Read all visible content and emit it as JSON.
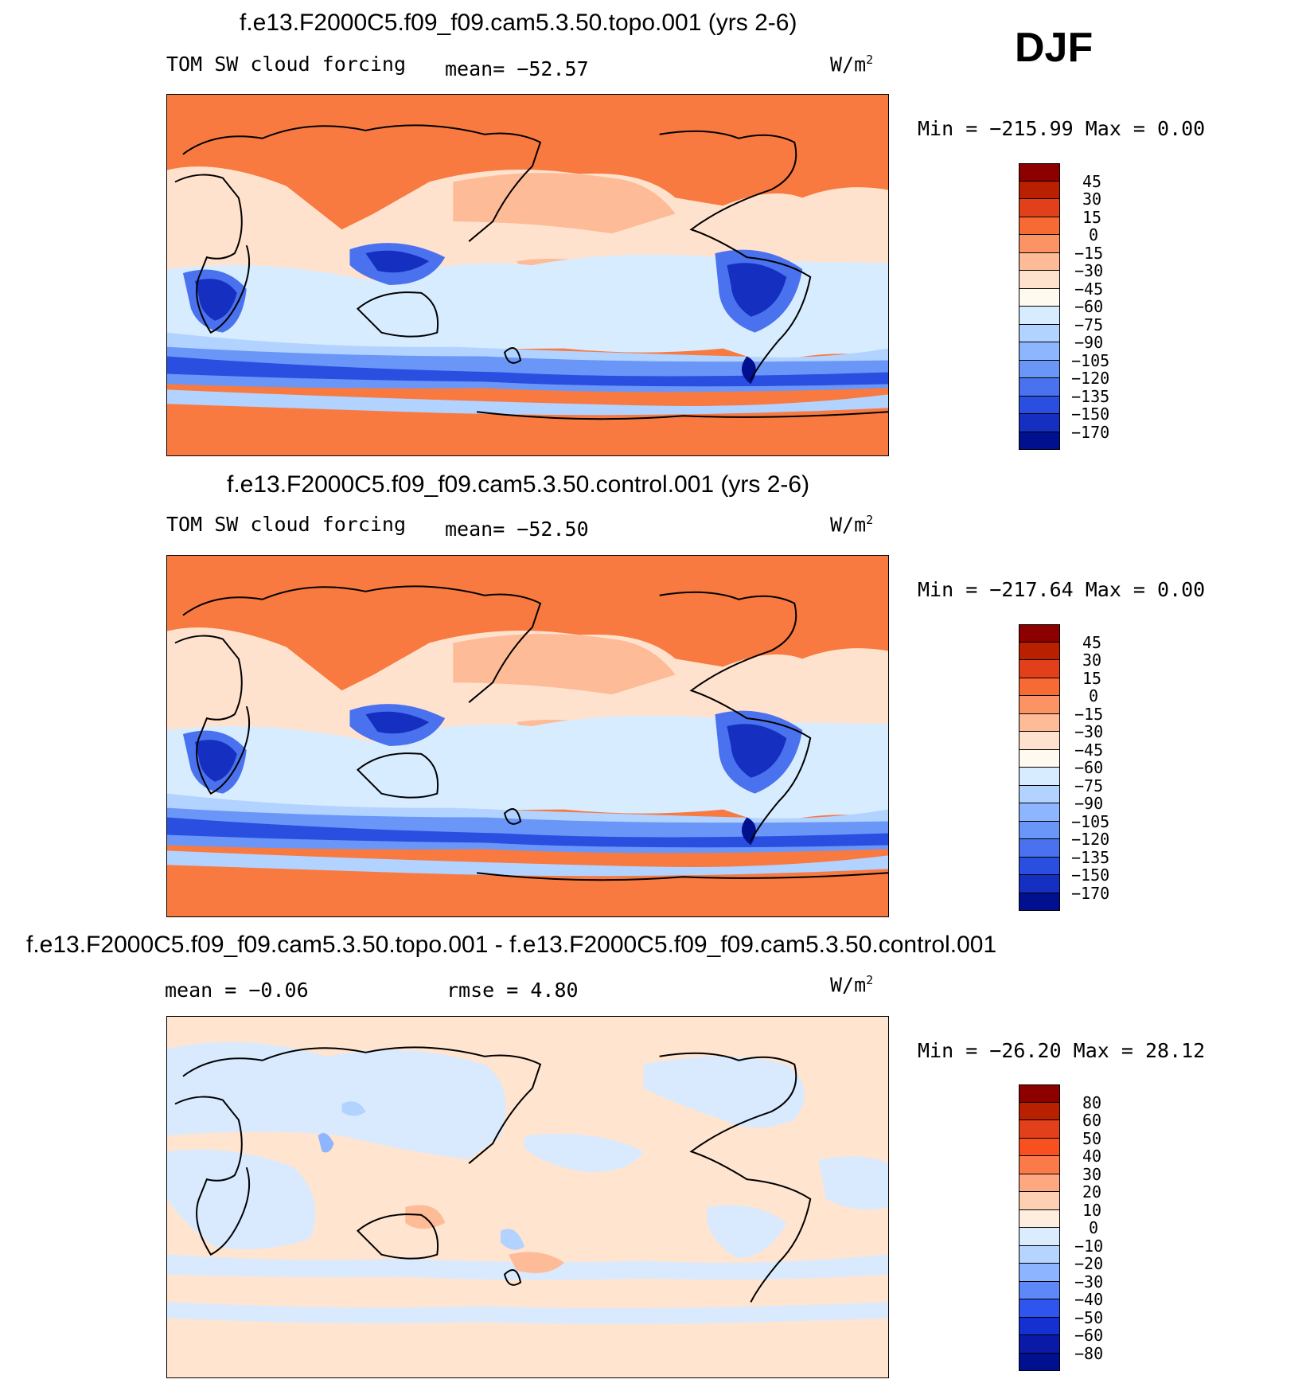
{
  "season": "DJF",
  "units_label": "W/m",
  "units_exp": "2",
  "panels": [
    {
      "title": "f.e13.F2000C5.f09_f09.cam5.3.50.topo.001 (yrs 2-6)",
      "left_label": "TOM SW cloud forcing",
      "stat_label": "mean= −52.57",
      "minmax": "Min = −215.99 Max =    0.00",
      "colorbar_labels": [
        "45",
        "30",
        "15",
        "0",
        "−15",
        "−30",
        "−45",
        "−60",
        "−75",
        "−90",
        "−105",
        "−120",
        "−135",
        "−150",
        "−170"
      ]
    },
    {
      "title": "f.e13.F2000C5.f09_f09.cam5.3.50.control.001 (yrs 2-6)",
      "left_label": "TOM SW cloud forcing",
      "stat_label": "mean= −52.50",
      "minmax": "Min = −217.64 Max =    0.00",
      "colorbar_labels": [
        "45",
        "30",
        "15",
        "0",
        "−15",
        "−30",
        "−45",
        "−60",
        "−75",
        "−90",
        "−105",
        "−120",
        "−135",
        "−150",
        "−170"
      ]
    },
    {
      "title": "f.e13.F2000C5.f09_f09.cam5.3.50.topo.001 - f.e13.F2000C5.f09_f09.cam5.3.50.control.001",
      "left_label": "mean =   −0.06",
      "stat_label": "rmse =    4.80",
      "minmax": "Min = −26.20 Max =  28.12",
      "colorbar_labels": [
        "80",
        "60",
        "50",
        "40",
        "30",
        "20",
        "10",
        "0",
        "−10",
        "−20",
        "−30",
        "−40",
        "−50",
        "−60",
        "−80"
      ]
    }
  ],
  "colors": {
    "scale": [
      "#8c0000",
      "#b92000",
      "#e2401a",
      "#f86a33",
      "#fc9364",
      "#fdbb97",
      "#ffe2cd",
      "#d8ecff",
      "#b2d2ff",
      "#8eb6ff",
      "#6a96f8",
      "#4a72ee",
      "#2a4ee0",
      "#1530c0",
      "#00108f"
    ],
    "ocean_orange": "#f87a40",
    "diff_light_orange": "#ffe4cf",
    "diff_light_blue": "#d9eaff"
  }
}
